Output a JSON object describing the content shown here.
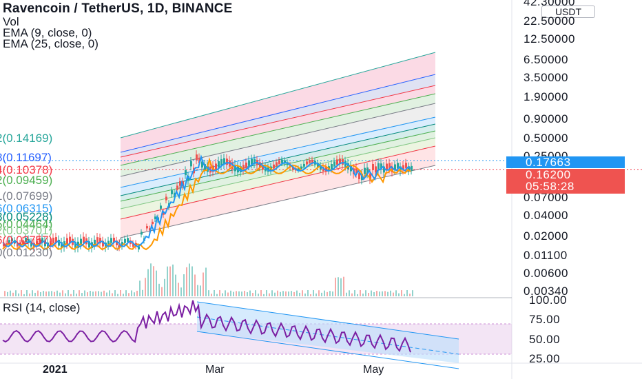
{
  "legend": {
    "title": "Ravencoin / TetherUS, 1D, BINANCE",
    "vol": "Vol",
    "ema9": "EMA (9, close, 0)",
    "ema25": "EMA (25, close, 0)"
  },
  "price_axis": {
    "currency": "USDT",
    "labels": [
      "42.30000",
      "22.50000",
      "12.50000",
      "6.50000",
      "3.50000",
      "1.90000",
      "0.90000",
      "0.50000",
      "0.25000",
      "0.07000",
      "0.04000",
      "0.02000",
      "0.01100",
      "0.00600",
      "0.00340"
    ]
  },
  "price_tags": {
    "blue": "0.17663",
    "red_price": "0.16200",
    "red_countdown": "05:58:28"
  },
  "fib_levels": [
    {
      "text": "2(0.14169)",
      "color": "#26a69a"
    },
    {
      "text": "8(0.11697)",
      "color": "#2962ff"
    },
    {
      "text": "4(0.10378)",
      "color": "#f23645"
    },
    {
      "text": "2(0.09459)",
      "color": "#4caf50"
    },
    {
      "text": "1(0.07699)",
      "color": "#787b86"
    },
    {
      "text": "6(0.06315)",
      "color": "#2196f3"
    },
    {
      "text": "8(0.05228)",
      "color": "#00897b"
    },
    {
      "text": "5(0.04464)",
      "color": "#4caf50"
    },
    {
      "text": "2(0.03701)",
      "color": "#81c784"
    },
    {
      "text": "6(0.02757)",
      "color": "#f23645"
    },
    {
      "text": "0(0.01230)",
      "color": "#787b86"
    }
  ],
  "rsi": {
    "title": "RSI (14, close)",
    "axis": [
      "100.00",
      "75.00",
      "50.00",
      "25.00"
    ]
  },
  "time_axis": {
    "labels": [
      "2021",
      "Mar",
      "May"
    ]
  },
  "colors": {
    "candle_up": "#26a69a",
    "candle_down": "#ef5350",
    "ema9": "#2196f3",
    "ema25": "#ff9800",
    "rsi_line": "#7b1fa2",
    "rsi_band": "#e1bee7",
    "channel_fill": "#bbdefb"
  }
}
